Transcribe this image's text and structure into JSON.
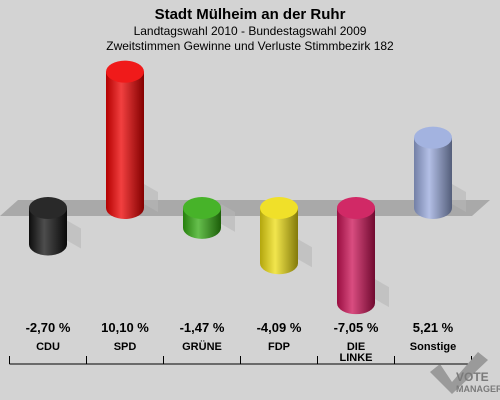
{
  "chart_data": {
    "type": "bar",
    "title": "Stadt Mülheim an der Ruhr",
    "subtitle_lines": [
      "Landtagswahl 2010 - Bundestagswahl 2009",
      "Zweitstimmen Gewinne und Verluste Stimmbezirk 182"
    ],
    "categories": [
      [
        "CDU"
      ],
      [
        "SPD"
      ],
      [
        "GRÜNE"
      ],
      [
        "FDP"
      ],
      [
        "DIE",
        "LINKE"
      ],
      [
        "Sonstige"
      ]
    ],
    "values": [
      -2.7,
      10.1,
      -1.47,
      -4.09,
      -7.05,
      5.21
    ],
    "value_labels": [
      "-2,70 %",
      "10,10 %",
      "-1,47 %",
      "-4,09 %",
      "-7,05 %",
      "5,21 %"
    ],
    "colors": [
      "#111111",
      "#ee0000",
      "#33aa11",
      "#eedd11",
      "#cc1155",
      "#99aadd"
    ],
    "ylim": [
      -8,
      11
    ],
    "grid": false
  },
  "logo": {
    "line1": "VOTE",
    "line2": "MANAGER"
  }
}
